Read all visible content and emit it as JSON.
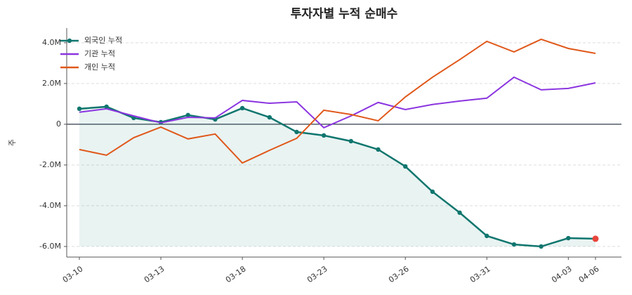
{
  "chart_data": {
    "type": "line",
    "title": "투자자별 누적 순매수",
    "y_label": "주",
    "categories": [
      "03-10",
      null,
      null,
      "03-13",
      null,
      null,
      "03-18",
      null,
      null,
      "03-23",
      null,
      null,
      "03-26",
      null,
      null,
      "03-31",
      null,
      null,
      "04-03",
      "04-06"
    ],
    "series": [
      {
        "name": "외국인 누적",
        "color": "#0f766e",
        "markers": true,
        "fill": true,
        "values": [
          760000,
          860000,
          310000,
          100000,
          450000,
          240000,
          790000,
          340000,
          -380000,
          -550000,
          -830000,
          -1240000,
          -2070000,
          -3310000,
          -4340000,
          -5480000,
          -5900000,
          -6000000,
          -5590000,
          -5620000
        ]
      },
      {
        "name": "기관 누적",
        "color": "#8b35e0",
        "values": [
          590000,
          760000,
          410000,
          70000,
          340000,
          310000,
          1170000,
          1030000,
          1100000,
          -170000,
          410000,
          1070000,
          720000,
          970000,
          1140000,
          1280000,
          2310000,
          1690000,
          1760000,
          2030000
        ]
      },
      {
        "name": "개인 누적",
        "color": "#e0581a",
        "values": [
          -1240000,
          -1520000,
          -660000,
          -140000,
          -720000,
          -480000,
          -1900000,
          -1280000,
          -690000,
          690000,
          480000,
          170000,
          1340000,
          2310000,
          3170000,
          4070000,
          3550000,
          4170000,
          3720000,
          3480000
        ]
      }
    ],
    "last_point_color": "#e8453c",
    "ylim": [
      -6520000,
      4720000
    ],
    "yticks": [
      {
        "value": -6000000,
        "label": "-6.0M"
      },
      {
        "value": -4000000,
        "label": "-4.0M"
      },
      {
        "value": -2000000,
        "label": "-2.0M"
      },
      0,
      {
        "value": 2000000,
        "label": "2.0M"
      },
      {
        "value": 4000000,
        "label": "4.0M"
      }
    ],
    "grid": true,
    "legend": "upper-left"
  }
}
